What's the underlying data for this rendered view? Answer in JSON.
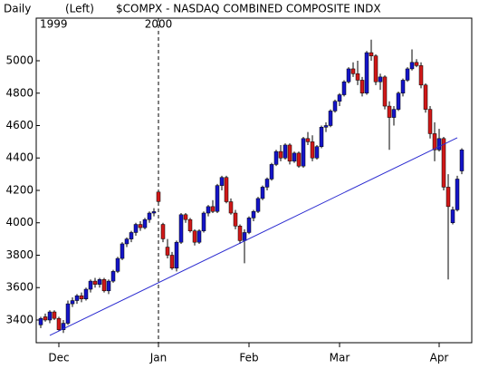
{
  "chart_data": {
    "type": "candlestick",
    "title": "$COMPX - NASDAQ COMBINED COMPOSITE INDX",
    "period": "Daily",
    "axis_side": "(Left)",
    "years": [
      {
        "label": "1999",
        "index": 0
      },
      {
        "label": "2000",
        "index": 26
      }
    ],
    "categories": [
      null,
      null,
      null,
      null,
      "Dec",
      null,
      null,
      null,
      null,
      null,
      null,
      null,
      null,
      null,
      null,
      null,
      null,
      null,
      null,
      null,
      null,
      null,
      null,
      null,
      null,
      null,
      "Jan",
      null,
      null,
      null,
      null,
      null,
      null,
      null,
      null,
      null,
      null,
      null,
      null,
      null,
      null,
      null,
      null,
      null,
      null,
      null,
      "Feb",
      null,
      null,
      null,
      null,
      null,
      null,
      null,
      null,
      null,
      null,
      null,
      null,
      null,
      null,
      null,
      null,
      null,
      null,
      null,
      "Mar",
      null,
      null,
      null,
      null,
      null,
      null,
      null,
      null,
      null,
      null,
      null,
      null,
      null,
      null,
      null,
      null,
      null,
      null,
      null,
      null,
      null,
      "Apr",
      null,
      null,
      null,
      null,
      null
    ],
    "open": [
      3370,
      3420,
      3400,
      3450,
      3410,
      3340,
      3380,
      3500,
      3520,
      3550,
      3530,
      3590,
      3640,
      3620,
      3650,
      3580,
      3640,
      3700,
      3780,
      3870,
      3900,
      3940,
      3990,
      3970,
      4020,
      4060,
      4190,
      3990,
      3850,
      3800,
      3720,
      3880,
      4050,
      4020,
      3950,
      3880,
      3950,
      4060,
      4100,
      4070,
      4230,
      4280,
      4130,
      4060,
      3980,
      3890,
      3940,
      4030,
      4070,
      4150,
      4220,
      4270,
      4360,
      4440,
      4400,
      4480,
      4380,
      4430,
      4350,
      4520,
      4500,
      4400,
      4470,
      4590,
      4600,
      4690,
      4750,
      4790,
      4870,
      4950,
      4920,
      4880,
      4800,
      5050,
      5030,
      4870,
      4900,
      4720,
      4650,
      4700,
      4800,
      4880,
      4950,
      4990,
      4970,
      4850,
      4700,
      4550,
      4450,
      4520,
      4220,
      4000,
      4080,
      4320
    ],
    "high": [
      3420,
      3440,
      3460,
      3460,
      3420,
      3400,
      3520,
      3540,
      3560,
      3570,
      3600,
      3650,
      3660,
      3660,
      3660,
      3650,
      3710,
      3790,
      3880,
      3910,
      3950,
      4000,
      4010,
      4030,
      4070,
      4090,
      4200,
      4000,
      3900,
      3820,
      3890,
      4060,
      4060,
      4030,
      3960,
      3960,
      4070,
      4110,
      4140,
      4240,
      4290,
      4290,
      4150,
      4080,
      3990,
      3960,
      4040,
      4080,
      4160,
      4230,
      4280,
      4370,
      4450,
      4480,
      4490,
      4490,
      4440,
      4440,
      4530,
      4560,
      4540,
      4480,
      4600,
      4620,
      4700,
      4760,
      4800,
      4880,
      4960,
      4990,
      5000,
      4900,
      5060,
      5130,
      5040,
      4920,
      4910,
      4750,
      4720,
      4810,
      4890,
      4960,
      5070,
      5010,
      4990,
      4860,
      4720,
      4620,
      4580,
      4530,
      4300,
      4100,
      4290,
      4460
    ],
    "low": [
      3350,
      3390,
      3380,
      3400,
      3330,
      3320,
      3370,
      3480,
      3500,
      3510,
      3520,
      3570,
      3600,
      3600,
      3570,
      3560,
      3630,
      3690,
      3770,
      3850,
      3880,
      3920,
      3950,
      3960,
      4000,
      4040,
      4110,
      3880,
      3780,
      3710,
      3700,
      3870,
      4000,
      3940,
      3860,
      3870,
      3940,
      4040,
      4060,
      4060,
      4200,
      4120,
      4050,
      3960,
      3870,
      3750,
      3930,
      4010,
      4060,
      4140,
      4200,
      4260,
      4350,
      4380,
      4390,
      4360,
      4370,
      4340,
      4340,
      4480,
      4380,
      4390,
      4460,
      4560,
      4590,
      4680,
      4720,
      4780,
      4860,
      4900,
      4850,
      4780,
      4790,
      5000,
      4850,
      4820,
      4700,
      4450,
      4600,
      4690,
      4780,
      4870,
      4940,
      4960,
      4830,
      4680,
      4520,
      4380,
      4440,
      4200,
      3650,
      3990,
      4070,
      4300
    ],
    "close": [
      3410,
      3400,
      3450,
      3410,
      3340,
      3380,
      3500,
      3520,
      3550,
      3530,
      3590,
      3640,
      3620,
      3650,
      3580,
      3640,
      3700,
      3780,
      3870,
      3900,
      3940,
      3990,
      3970,
      4020,
      4060,
      4069,
      4131,
      3901,
      3800,
      3720,
      3880,
      4050,
      4020,
      3950,
      3880,
      3950,
      4060,
      4100,
      4070,
      4230,
      4280,
      4130,
      4060,
      3980,
      3890,
      3940,
      4030,
      4070,
      4150,
      4220,
      4270,
      4360,
      4440,
      4400,
      4480,
      4380,
      4430,
      4350,
      4520,
      4500,
      4400,
      4470,
      4590,
      4600,
      4690,
      4750,
      4790,
      4870,
      4950,
      4920,
      4880,
      4800,
      5050,
      5030,
      4870,
      4900,
      4720,
      4650,
      4700,
      4800,
      4880,
      4950,
      4990,
      4970,
      4850,
      4700,
      4550,
      4450,
      4520,
      4220,
      4100,
      4080,
      4270,
      4450
    ],
    "up_color": "#1414c8",
    "down_color": "#d01818",
    "trendline": {
      "x": [
        2,
        92
      ],
      "y": [
        3305,
        4525
      ],
      "color": "#2a2ad0"
    },
    "ylim": [
      3260,
      5263
    ],
    "yticks": [
      3400,
      3600,
      3800,
      4000,
      4200,
      4400,
      4600,
      4800,
      5000
    ]
  }
}
